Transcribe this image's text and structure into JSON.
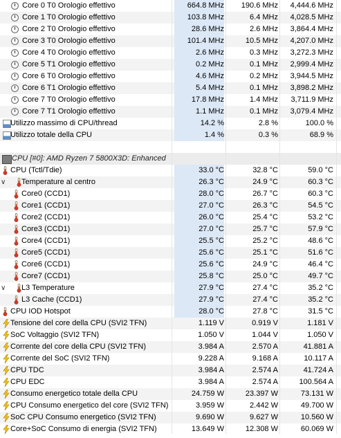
{
  "sensors": {
    "core_clocks": [
      {
        "label": "Core 0 T0 Orologio effettivo",
        "cur": "664.8 MHz",
        "min": "190.6 MHz",
        "max": "4,444.6 MHz"
      },
      {
        "label": "Core 1 T0 Orologio effettivo",
        "cur": "103.8 MHz",
        "min": "6.4 MHz",
        "max": "4,028.5 MHz"
      },
      {
        "label": "Core 2 T0 Orologio effettivo",
        "cur": "28.6 MHz",
        "min": "2.6 MHz",
        "max": "3,864.4 MHz"
      },
      {
        "label": "Core 3 T0 Orologio effettivo",
        "cur": "101.4 MHz",
        "min": "10.5 MHz",
        "max": "4,207.0 MHz"
      },
      {
        "label": "Core 4 T0 Orologio effettivo",
        "cur": "2.6 MHz",
        "min": "0.3 MHz",
        "max": "3,272.3 MHz"
      },
      {
        "label": "Core 5 T1 Orologio effettivo",
        "cur": "0.2 MHz",
        "min": "0.1 MHz",
        "max": "2,999.4 MHz"
      },
      {
        "label": "Core 6 T0 Orologio effettivo",
        "cur": "4.6 MHz",
        "min": "0.2 MHz",
        "max": "3,944.5 MHz"
      },
      {
        "label": "Core 6 T1 Orologio effettivo",
        "cur": "5.4 MHz",
        "min": "0.1 MHz",
        "max": "3,898.2 MHz"
      },
      {
        "label": "Core 7 T0 Orologio effettivo",
        "cur": "17.8 MHz",
        "min": "1.4 MHz",
        "max": "3,711.9 MHz"
      },
      {
        "label": "Core 7 T1 Orologio effettivo",
        "cur": "1.1 MHz",
        "min": "0.1 MHz",
        "max": "3,079.4 MHz"
      }
    ],
    "usage": [
      {
        "label": "Utilizzo massimo di CPU/thread",
        "cur": "14.2 %",
        "min": "2.8 %",
        "max": "100.0 %"
      },
      {
        "label": "Utilizzo totale della CPU",
        "cur": "1.4 %",
        "min": "0.3 %",
        "max": "68.9 %"
      }
    ],
    "section_header": "CPU [#0]: AMD Ryzen 7 5800X3D: Enhanced",
    "temps": [
      {
        "label": "CPU (Tctl/Tdie)",
        "cur": "33.0 °C",
        "min": "32.8 °C",
        "max": "59.0 °C",
        "indent": 0,
        "arrow": false
      },
      {
        "label": "Temperature al centro",
        "cur": "26.3 °C",
        "min": "24.9 °C",
        "max": "60.3 °C",
        "indent": 1,
        "arrow": true
      },
      {
        "label": "Core0 (CCD1)",
        "cur": "28.0 °C",
        "min": "26.7 °C",
        "max": "60.3 °C",
        "indent": 2,
        "arrow": false
      },
      {
        "label": "Core1 (CCD1)",
        "cur": "27.0 °C",
        "min": "26.3 °C",
        "max": "54.5 °C",
        "indent": 2,
        "arrow": false
      },
      {
        "label": "Core2 (CCD1)",
        "cur": "26.0 °C",
        "min": "25.4 °C",
        "max": "53.2 °C",
        "indent": 2,
        "arrow": false
      },
      {
        "label": "Core3 (CCD1)",
        "cur": "27.0 °C",
        "min": "25.7 °C",
        "max": "57.9 °C",
        "indent": 2,
        "arrow": false
      },
      {
        "label": "Core4 (CCD1)",
        "cur": "25.5 °C",
        "min": "25.2 °C",
        "max": "48.6 °C",
        "indent": 2,
        "arrow": false
      },
      {
        "label": "Core5 (CCD1)",
        "cur": "25.6 °C",
        "min": "25.1 °C",
        "max": "51.6 °C",
        "indent": 2,
        "arrow": false
      },
      {
        "label": "Core6 (CCD1)",
        "cur": "25.6 °C",
        "min": "24.9 °C",
        "max": "46.4 °C",
        "indent": 2,
        "arrow": false
      },
      {
        "label": "Core7 (CCD1)",
        "cur": "25.8 °C",
        "min": "25.0 °C",
        "max": "49.7 °C",
        "indent": 2,
        "arrow": false
      },
      {
        "label": "L3 Temperature",
        "cur": "27.9 °C",
        "min": "27.4 °C",
        "max": "35.2 °C",
        "indent": 1,
        "arrow": true
      },
      {
        "label": "L3 Cache (CCD1)",
        "cur": "27.9 °C",
        "min": "27.4 °C",
        "max": "35.2 °C",
        "indent": 2,
        "arrow": false
      },
      {
        "label": "CPU IOD Hotspot",
        "cur": "28.0 °C",
        "min": "27.8 °C",
        "max": "31.5 °C",
        "indent": 0,
        "arrow": false
      }
    ],
    "power": [
      {
        "label": "Tensione del core della CPU (SVI2 TFN)",
        "cur": "1.119 V",
        "min": "0.919 V",
        "max": "1.181 V"
      },
      {
        "label": "SoC Voltaggio (SVI2 TFN)",
        "cur": "1.050 V",
        "min": "1.044 V",
        "max": "1.050 V"
      },
      {
        "label": "Corrente del core della CPU (SVI2 TFN)",
        "cur": "3.984 A",
        "min": "2.570 A",
        "max": "41.881 A"
      },
      {
        "label": "Corrente del SoC (SVI2 TFN)",
        "cur": "9.228 A",
        "min": "9.168 A",
        "max": "10.117 A"
      },
      {
        "label": "CPU TDC",
        "cur": "3.984 A",
        "min": "2.574 A",
        "max": "41.724 A"
      },
      {
        "label": "CPU EDC",
        "cur": "3.984 A",
        "min": "2.574 A",
        "max": "100.564 A"
      },
      {
        "label": "Consumo energetico totale della CPU",
        "cur": "24.759 W",
        "min": "23.397 W",
        "max": "73.131 W"
      },
      {
        "label": "CPU Consumo energetico del core (SVI2 TFN)",
        "cur": "3.959 W",
        "min": "2.442 W",
        "max": "49.700 W"
      },
      {
        "label": "SoC CPU Consumo energetico (SVI2 TFN)",
        "cur": "9.690 W",
        "min": "9.627 W",
        "max": "10.560 W"
      },
      {
        "label": "Core+SoC Consumo di energia (SVI2 TFN)",
        "cur": "13.649 W",
        "min": "12.308 W",
        "max": "60.069 W"
      }
    ]
  },
  "colors": {
    "accent": "#dce8f6",
    "zebra": "#f3f3f3",
    "header": "#ececec"
  },
  "icons": {
    "clock": "clock-icon",
    "usage": "usage-icon",
    "thermo": "thermometer-icon",
    "bolt": "lightning-bolt-icon",
    "chip": "chip-icon"
  }
}
